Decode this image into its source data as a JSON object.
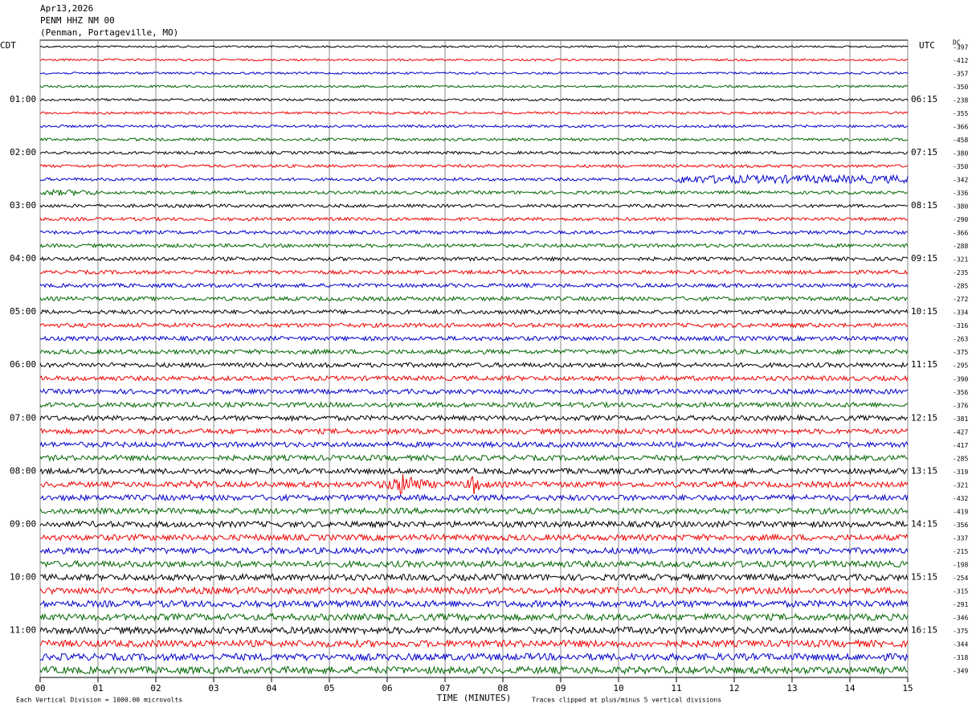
{
  "header": {
    "date": "Apr13,2026",
    "station": "PENM HHZ NM 00",
    "location": "(Penman, Portageville, MO)"
  },
  "left_label": "CDT",
  "right_label": "UTC",
  "dc_label": "DC",
  "left_times": [
    "01:00",
    "02:00",
    "03:00",
    "04:00",
    "05:00",
    "06:00",
    "07:00",
    "08:00",
    "09:00",
    "10:00",
    "11:00"
  ],
  "right_times": [
    "06:15",
    "07:15",
    "08:15",
    "09:15",
    "10:15",
    "11:15",
    "12:15",
    "13:15",
    "14:15",
    "15:15",
    "16:15"
  ],
  "dc_values": [
    "-397",
    "-412",
    "-357",
    "-350",
    "-238",
    "-355",
    "-366",
    "-458",
    "-380",
    "-350",
    "-342",
    "-336",
    "-380",
    "-290",
    "-366",
    "-288",
    "-321",
    "-235",
    "-285",
    "-272",
    "-334",
    "-316",
    "-263",
    "-375",
    "-295",
    "-390",
    "-356",
    "-376",
    "-381",
    "-427",
    "-417",
    "-285",
    "-319",
    "-321",
    "-432",
    "-419",
    "-356",
    "-337",
    "-215",
    "-198",
    "-254",
    "-315",
    "-291",
    "-346",
    "-375",
    "-344",
    "-318",
    "-349"
  ],
  "x_ticks": [
    "00",
    "01",
    "02",
    "03",
    "04",
    "05",
    "06",
    "07",
    "08",
    "09",
    "10",
    "11",
    "12",
    "13",
    "14",
    "15"
  ],
  "x_title": "TIME (MINUTES)",
  "footer_left": "Each Vertical Division = 1000.00 microvolts",
  "footer_right": "Traces clipped at plus/minus 5 vertical divisions"
}
